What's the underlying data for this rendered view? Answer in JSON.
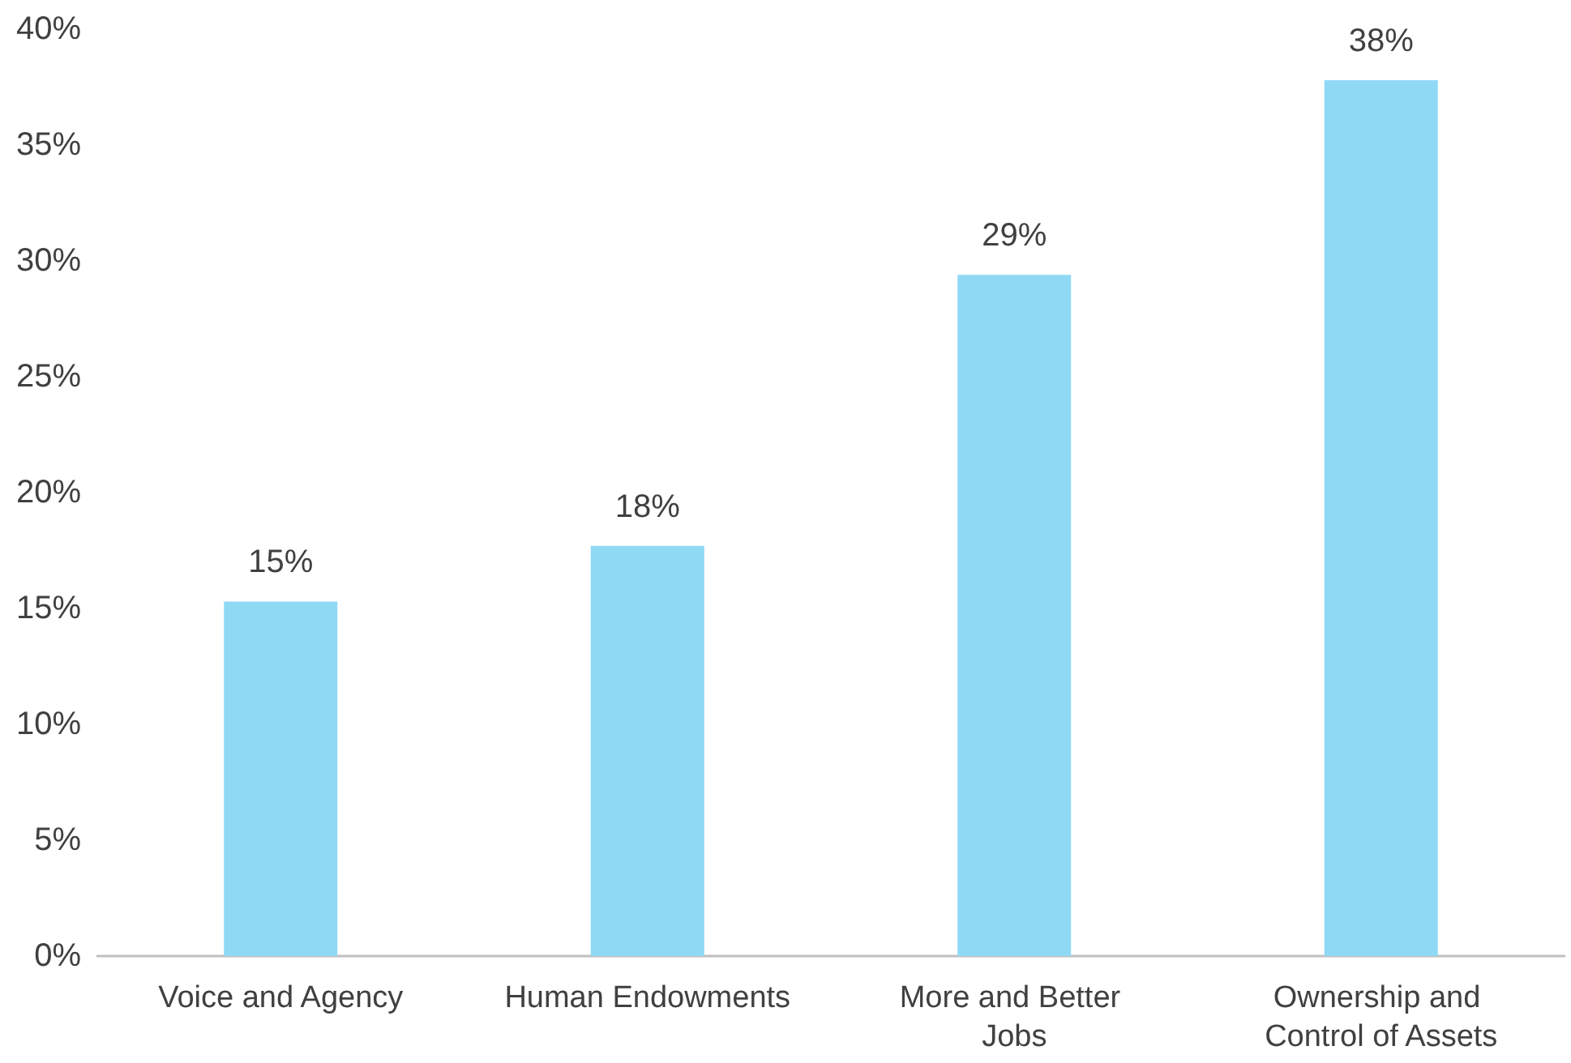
{
  "chart_data": {
    "type": "bar",
    "categories": [
      "Voice and Agency",
      "Human Endowments",
      "More and Better Jobs",
      "Ownership and Control of Assets"
    ],
    "values": [
      15.3,
      17.7,
      29.4,
      37.8
    ],
    "value_labels": [
      "15%",
      "18%",
      "29%",
      "38%"
    ],
    "color": "#8fd9f5",
    "ylim": [
      0,
      40
    ],
    "yticks": [
      {
        "value": 0,
        "label": "0%"
      },
      {
        "value": 5,
        "label": "5%"
      },
      {
        "value": 10,
        "label": "10%"
      },
      {
        "value": 15,
        "label": "15%"
      },
      {
        "value": 20,
        "label": "20%"
      },
      {
        "value": 25,
        "label": "25%"
      },
      {
        "value": 30,
        "label": "30%"
      },
      {
        "value": 35,
        "label": "35%"
      },
      {
        "value": 40,
        "label": "40%"
      }
    ],
    "grid": false
  }
}
